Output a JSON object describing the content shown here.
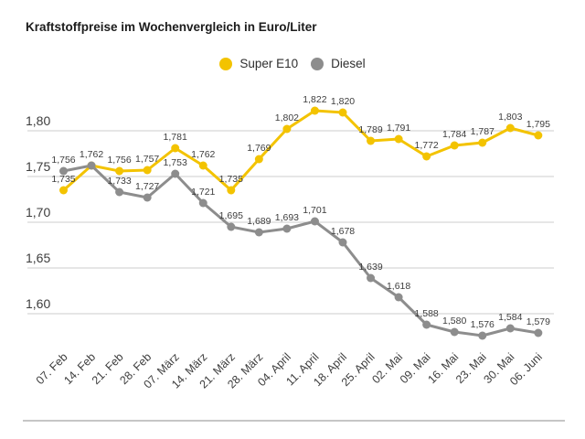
{
  "title": "Kraftstoffpreise im Wochenvergleich in Euro/Liter",
  "legend": {
    "items": [
      {
        "label": "Super E10",
        "color": "#f3c300"
      },
      {
        "label": "Diesel",
        "color": "#8d8d8d"
      }
    ]
  },
  "chart_data": {
    "type": "line",
    "title": "Kraftstoffpreise im Wochenvergleich in Euro/Liter",
    "unit": "Euro/Liter",
    "grid": true,
    "legend_position": "top-center",
    "categories": [
      "07. Feb",
      "14. Feb",
      "21. Feb",
      "28. Feb",
      "07. März",
      "14. März",
      "21. März",
      "28. März",
      "04. April",
      "11. April",
      "18. April",
      "25. April",
      "02. Mai",
      "09. Mai",
      "16. Mai",
      "23. Mai",
      "30. Mai",
      "06. Juni"
    ],
    "series": [
      {
        "name": "Super E10",
        "color": "#f3c300",
        "values": [
          1.735,
          1.762,
          1.756,
          1.757,
          1.781,
          1.762,
          1.735,
          1.769,
          1.802,
          1.822,
          1.82,
          1.789,
          1.791,
          1.772,
          1.784,
          1.787,
          1.803,
          1.795
        ],
        "labels": [
          "1,735",
          "1,762",
          "1,756",
          "1,757",
          "1,781",
          "1,762",
          "1,735",
          "1,769",
          "1,802",
          "1,822",
          "1,820",
          "1,789",
          "1,791",
          "1,772",
          "1,784",
          "1,787",
          "1,803",
          "1,795"
        ]
      },
      {
        "name": "Diesel",
        "color": "#8d8d8d",
        "values": [
          1.756,
          1.762,
          1.733,
          1.727,
          1.753,
          1.721,
          1.695,
          1.689,
          1.693,
          1.701,
          1.678,
          1.639,
          1.618,
          1.588,
          1.58,
          1.576,
          1.584,
          1.579
        ],
        "labels": [
          "1,756",
          "",
          "1,733",
          "1,727",
          "1,753",
          "1,721",
          "1,695",
          "1,689",
          "1,693",
          "1,701",
          "1,678",
          "1,639",
          "1,618",
          "1,588",
          "1,580",
          "1,576",
          "1,584",
          "1,579"
        ]
      }
    ],
    "yticks": {
      "labels": [
        "1,80",
        "1,75",
        "1,70",
        "1,65",
        "1,60"
      ],
      "values": [
        1.8,
        1.75,
        1.7,
        1.65,
        1.6
      ]
    },
    "ylim": [
      1.555,
      1.845
    ],
    "shared_point_note": "Both series have the same value 1,762 on 14. Feb; a single label is shown"
  }
}
